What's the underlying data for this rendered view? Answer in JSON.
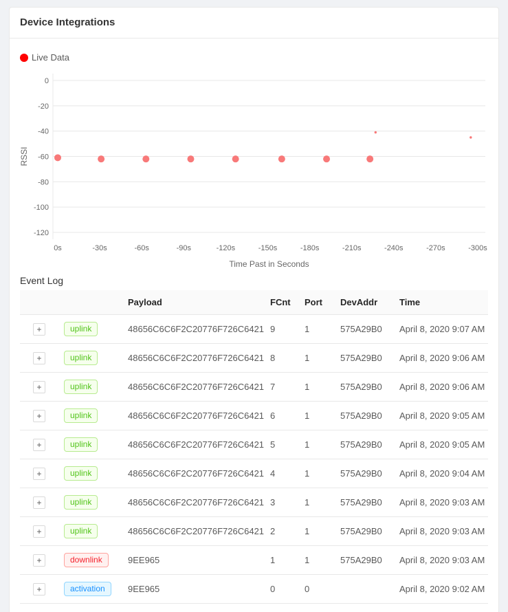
{
  "card": {
    "title": "Device Integrations"
  },
  "chart_data": {
    "type": "scatter",
    "legend": [
      {
        "label": "Live Data",
        "color": "#ff0000"
      }
    ],
    "xlabel": "Time Past in Seconds",
    "ylabel": "RSSI",
    "x_tick_labels": [
      "0s",
      "-30s",
      "-60s",
      "-90s",
      "-120s",
      "-150s",
      "-180s",
      "-210s",
      "-240s",
      "-270s",
      "-300s"
    ],
    "x_tick_values": [
      0,
      -30,
      -60,
      -90,
      -120,
      -150,
      -180,
      -210,
      -240,
      -270,
      -300
    ],
    "y_tick_labels": [
      "0",
      "-20",
      "-40",
      "-60",
      "-80",
      "-100",
      "-120"
    ],
    "y_tick_values": [
      0,
      -20,
      -40,
      -60,
      -80,
      -100,
      -120
    ],
    "xlim": [
      0,
      -300
    ],
    "ylim": [
      0,
      -120
    ],
    "grid": "horizontal-only",
    "legend_position": "top-left",
    "series": [
      {
        "name": "Live Data",
        "point_color": "#f87979",
        "points": [
          {
            "t": 0,
            "rssi": -61,
            "size": "large"
          },
          {
            "t": -31,
            "rssi": -62,
            "size": "large"
          },
          {
            "t": -63,
            "rssi": -62,
            "size": "large"
          },
          {
            "t": -95,
            "rssi": -62,
            "size": "large"
          },
          {
            "t": -127,
            "rssi": -62,
            "size": "large"
          },
          {
            "t": -160,
            "rssi": -62,
            "size": "large"
          },
          {
            "t": -192,
            "rssi": -62,
            "size": "large"
          },
          {
            "t": -223,
            "rssi": -62,
            "size": "large"
          },
          {
            "t": -227,
            "rssi": -41,
            "size": "small"
          },
          {
            "t": -295,
            "rssi": -45,
            "size": "small"
          }
        ]
      }
    ]
  },
  "event_log": {
    "title": "Event Log",
    "columns": [
      "",
      "",
      "Payload",
      "FCnt",
      "Port",
      "DevAddr",
      "Time"
    ],
    "expand_button_label": "+",
    "badge_styles": {
      "uplink": {
        "color": "#52c41a",
        "bg": "#f6ffed",
        "border": "#b7eb8f"
      },
      "downlink": {
        "color": "#f5222d",
        "bg": "#fff1f0",
        "border": "#ffa39e"
      },
      "activation": {
        "color": "#1890ff",
        "bg": "#e6f7ff",
        "border": "#91d5ff"
      }
    },
    "rows": [
      {
        "type": "uplink",
        "payload": "48656C6C6F2C20776F726C6421",
        "fcnt": "9",
        "port": "1",
        "devaddr": "575A29B0",
        "time": "April 8, 2020 9:07 AM"
      },
      {
        "type": "uplink",
        "payload": "48656C6C6F2C20776F726C6421",
        "fcnt": "8",
        "port": "1",
        "devaddr": "575A29B0",
        "time": "April 8, 2020 9:06 AM"
      },
      {
        "type": "uplink",
        "payload": "48656C6C6F2C20776F726C6421",
        "fcnt": "7",
        "port": "1",
        "devaddr": "575A29B0",
        "time": "April 8, 2020 9:06 AM"
      },
      {
        "type": "uplink",
        "payload": "48656C6C6F2C20776F726C6421",
        "fcnt": "6",
        "port": "1",
        "devaddr": "575A29B0",
        "time": "April 8, 2020 9:05 AM"
      },
      {
        "type": "uplink",
        "payload": "48656C6C6F2C20776F726C6421",
        "fcnt": "5",
        "port": "1",
        "devaddr": "575A29B0",
        "time": "April 8, 2020 9:05 AM"
      },
      {
        "type": "uplink",
        "payload": "48656C6C6F2C20776F726C6421",
        "fcnt": "4",
        "port": "1",
        "devaddr": "575A29B0",
        "time": "April 8, 2020 9:04 AM"
      },
      {
        "type": "uplink",
        "payload": "48656C6C6F2C20776F726C6421",
        "fcnt": "3",
        "port": "1",
        "devaddr": "575A29B0",
        "time": "April 8, 2020 9:03 AM"
      },
      {
        "type": "uplink",
        "payload": "48656C6C6F2C20776F726C6421",
        "fcnt": "2",
        "port": "1",
        "devaddr": "575A29B0",
        "time": "April 8, 2020 9:03 AM"
      },
      {
        "type": "downlink",
        "payload": "9EE965",
        "fcnt": "1",
        "port": "1",
        "devaddr": "575A29B0",
        "time": "April 8, 2020 9:03 AM"
      },
      {
        "type": "activation",
        "payload": "9EE965",
        "fcnt": "0",
        "port": "0",
        "devaddr": "",
        "time": "April 8, 2020 9:02 AM"
      }
    ]
  }
}
